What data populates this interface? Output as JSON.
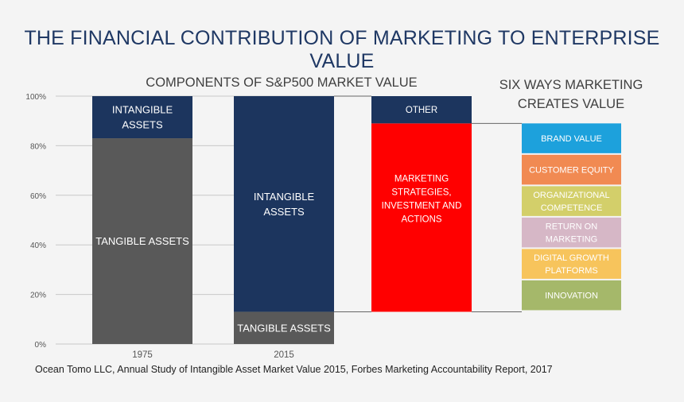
{
  "title": "THE FINANCIAL CONTRIBUTION OF MARKETING TO ENTERPRISE VALUE",
  "source": "Ocean Tomo LLC, Annual Study of Intangible Asset Market Value 2015, Forbes Marketing Accountability Report, 2017",
  "chart_data": {
    "type": "bar",
    "title": "COMPONENTS OF S&P500 MARKET VALUE",
    "subtitle": "SIX WAYS MARKETING CREATES VALUE",
    "ylim": [
      0,
      100
    ],
    "yticks": [
      0,
      20,
      40,
      60,
      80,
      100
    ],
    "ytick_labels": [
      "0%",
      "20%",
      "40%",
      "60%",
      "80%",
      "100%"
    ],
    "grid": true,
    "categories": [
      "1975",
      "2015"
    ],
    "series": [
      {
        "name": "TANGIBLE ASSETS",
        "values": [
          83,
          13
        ],
        "color": "#595959"
      },
      {
        "name": "INTANGIBLE ASSETS",
        "values": [
          17,
          87
        ],
        "color": "#1c355e"
      }
    ],
    "intangible_breakdown": [
      {
        "label": "MARKETING STRATEGIES, INVESTMENT AND ACTIONS",
        "lines": [
          "MARKETING",
          "STRATEGIES,",
          "INVESTMENT  AND",
          "ACTIONS"
        ],
        "from": 13,
        "to": 89,
        "color": "#ff0000"
      },
      {
        "label": "OTHER",
        "lines": [
          "OTHER"
        ],
        "from": 89,
        "to": 100,
        "color": "#1c355e"
      }
    ],
    "six_ways": [
      {
        "label": "BRAND VALUE",
        "lines": [
          "BRAND VALUE"
        ],
        "color": "#1da1dc"
      },
      {
        "label": "CUSTOMER EQUITY",
        "lines": [
          "CUSTOMER EQUITY"
        ],
        "color": "#f18a52"
      },
      {
        "label": "ORGANIZATIONAL COMPETENCE",
        "lines": [
          "ORGANIZATIONAL",
          "COMPETENCE"
        ],
        "color": "#d3cf6a"
      },
      {
        "label": "RETURN ON MARKETING",
        "lines": [
          "RETURN ON",
          "MARKETING"
        ],
        "color": "#d6b7c6"
      },
      {
        "label": "DIGITAL GROWTH PLATFORMS",
        "lines": [
          "DIGITAL GROWTH",
          "PLATFORMS"
        ],
        "color": "#f7c45c"
      },
      {
        "label": "INNOVATION",
        "lines": [
          "INNOVATION"
        ],
        "color": "#a5b86a"
      }
    ]
  }
}
